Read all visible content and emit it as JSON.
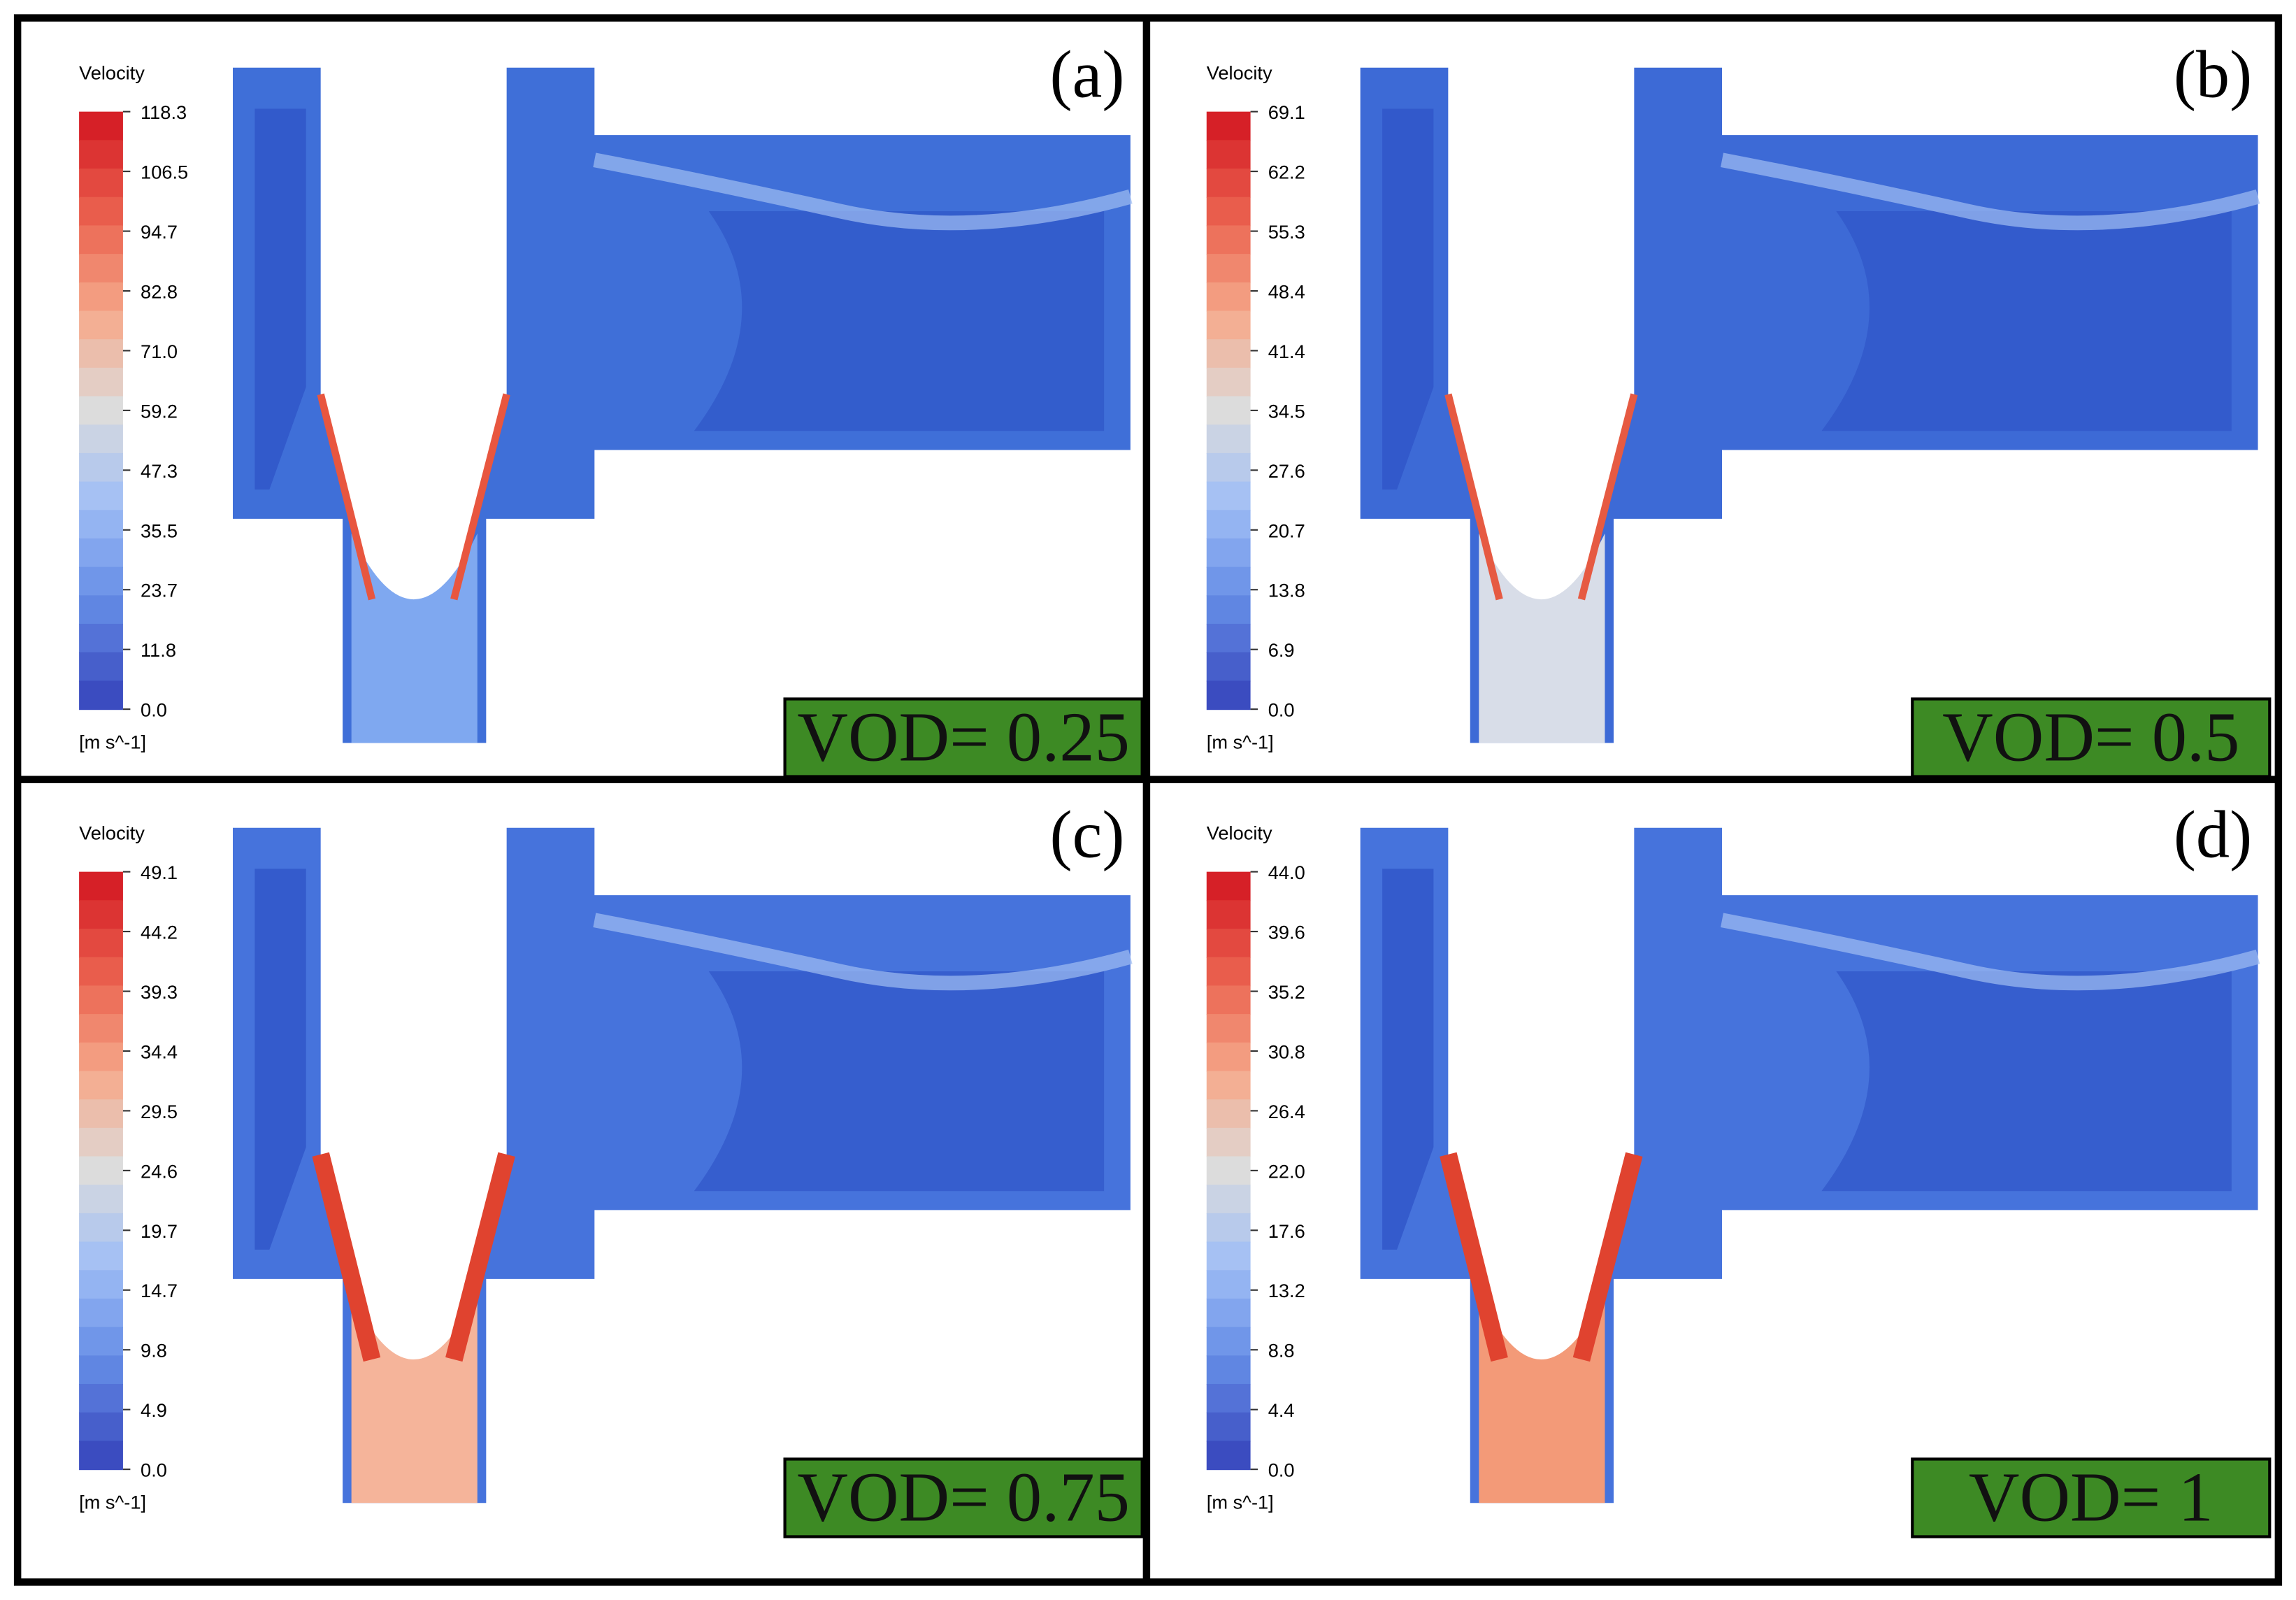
{
  "panels": [
    {
      "label": "(a)",
      "legend_title": "Velocity",
      "ticks": [
        "118.3",
        "106.5",
        "94.7",
        "82.8",
        "71.0",
        "59.2",
        "47.3",
        "35.5",
        "23.7",
        "11.8",
        "0.0"
      ],
      "unit": "[m s^-1]",
      "caption": "VOD= 0.25"
    },
    {
      "label": "(b)",
      "legend_title": "Velocity",
      "ticks": [
        "69.1",
        "62.2",
        "55.3",
        "48.4",
        "41.4",
        "34.5",
        "27.6",
        "20.7",
        "13.8",
        "6.9",
        "0.0"
      ],
      "unit": "[m s^-1]",
      "caption": "VOD= 0.5"
    },
    {
      "label": "(c)",
      "legend_title": "Velocity",
      "ticks": [
        "49.1",
        "44.2",
        "39.3",
        "34.4",
        "29.5",
        "24.6",
        "19.7",
        "14.7",
        "9.8",
        "4.9",
        "0.0"
      ],
      "unit": "[m s^-1]",
      "caption": "VOD= 0.75"
    },
    {
      "label": "(d)",
      "legend_title": "Velocity",
      "ticks": [
        "44.0",
        "39.6",
        "35.2",
        "30.8",
        "26.4",
        "22.0",
        "17.6",
        "13.2",
        "8.8",
        "4.4",
        "0.0"
      ],
      "unit": "[m s^-1]",
      "caption": "VOD= 1"
    }
  ]
}
